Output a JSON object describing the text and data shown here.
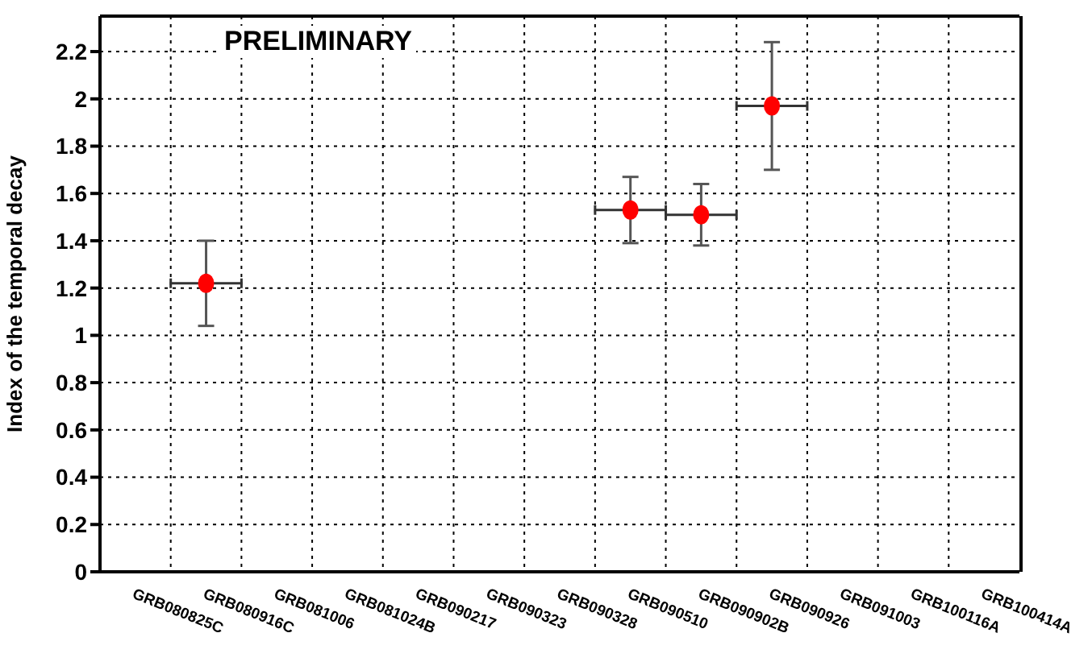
{
  "chart_data": {
    "type": "scatter",
    "ylabel": "Index of the temporal decay",
    "annotations": [
      "PRELIMINARY"
    ],
    "categories": [
      "GRB080825C",
      "GRB080916C",
      "GRB081006",
      "GRB081024B",
      "GRB090217",
      "GRB090323",
      "GRB090328",
      "GRB090510",
      "GRB090902B",
      "GRB090926",
      "GRB091003",
      "GRB100116A",
      "GRB100414A"
    ],
    "series": [
      {
        "color": "#ff0000",
        "values": [
          null,
          1.22,
          null,
          null,
          null,
          null,
          null,
          1.53,
          1.51,
          1.97,
          null,
          null,
          null
        ],
        "errors": [
          null,
          0.18,
          null,
          null,
          null,
          null,
          null,
          0.14,
          0.13,
          0.27,
          null,
          null,
          null
        ]
      }
    ],
    "ylim": [
      0,
      2.35
    ],
    "yticks": [
      0,
      0.2,
      0.4,
      0.6,
      0.8,
      1,
      1.2,
      1.4,
      1.6,
      1.8,
      2,
      2.2
    ],
    "grid": true,
    "marker": "circle"
  }
}
